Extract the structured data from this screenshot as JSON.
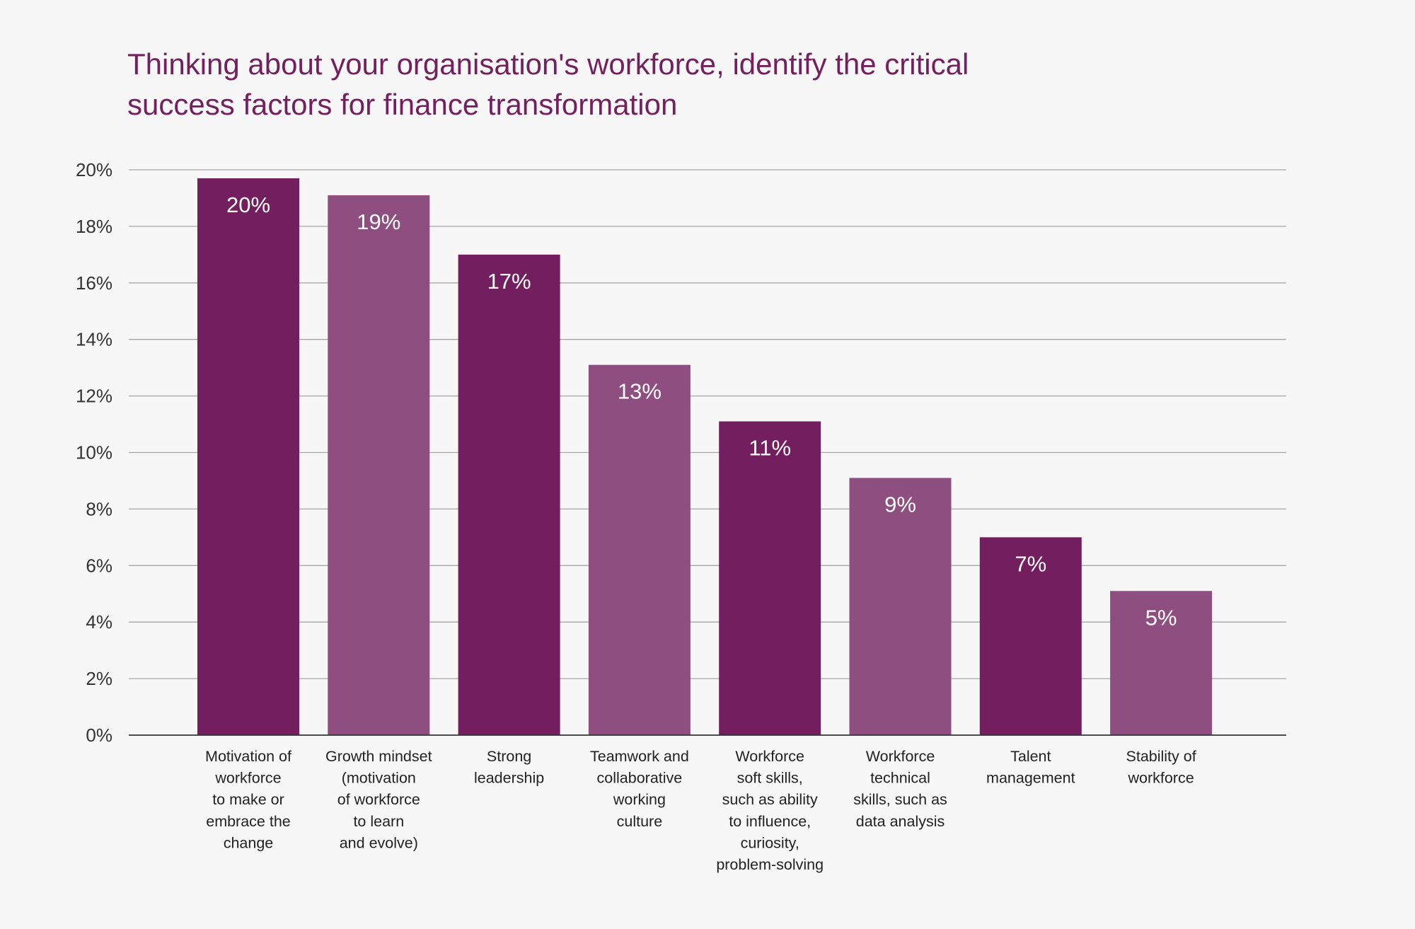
{
  "chart_data": {
    "type": "bar",
    "title": "Thinking about your organisation's workforce, identify the critical success factors for finance transformation",
    "title_lines": [
      "Thinking about your organisation's workforce, identify the critical",
      "success factors for finance transformation"
    ],
    "xlabel": "",
    "ylabel": "",
    "ylim": [
      0,
      20
    ],
    "y_ticks": [
      "0%",
      "2%",
      "4%",
      "6%",
      "8%",
      "10%",
      "12%",
      "14%",
      "16%",
      "18%",
      "20%"
    ],
    "grid": true,
    "categories": [
      "Motivation of workforce to make or embrace the change",
      "Growth mindset (motivation of workforce to learn and evolve)",
      "Strong leadership",
      "Teamwork and collaborative working culture",
      "Workforce soft skills, such as ability to influence, curiosity, problem-solving",
      "Workforce technical skills, such as data analysis",
      "Talent management",
      "Stability of workforce"
    ],
    "category_label_lines": [
      [
        "Motivation of",
        "workforce",
        "to make or",
        "embrace the",
        "change"
      ],
      [
        "Growth mindset",
        "(motivation",
        "of workforce",
        "to learn",
        "and evolve)"
      ],
      [
        "Strong",
        "leadership"
      ],
      [
        "Teamwork and",
        "collaborative",
        "working",
        "culture"
      ],
      [
        "Workforce",
        "soft skills,",
        "such as ability",
        "to influence,",
        "curiosity,",
        "problem-solving"
      ],
      [
        "Workforce",
        "technical",
        "skills, such as",
        "data analysis"
      ],
      [
        "Talent",
        "management"
      ],
      [
        "Stability of",
        "workforce"
      ]
    ],
    "values": [
      19.7,
      19.1,
      17.0,
      13.1,
      11.1,
      9.1,
      7.0,
      5.1
    ],
    "data_labels": [
      "20%",
      "19%",
      "17%",
      "13%",
      "11%",
      "9%",
      "7%",
      "5%"
    ],
    "colors": {
      "dark": "#731e5f",
      "light": "#8e4e7f",
      "grid": "#a6a6a6",
      "axis": "#333333",
      "title": "#74205f"
    },
    "bar_color_pattern": [
      "dark",
      "light",
      "dark",
      "light",
      "dark",
      "light",
      "dark",
      "light"
    ]
  }
}
